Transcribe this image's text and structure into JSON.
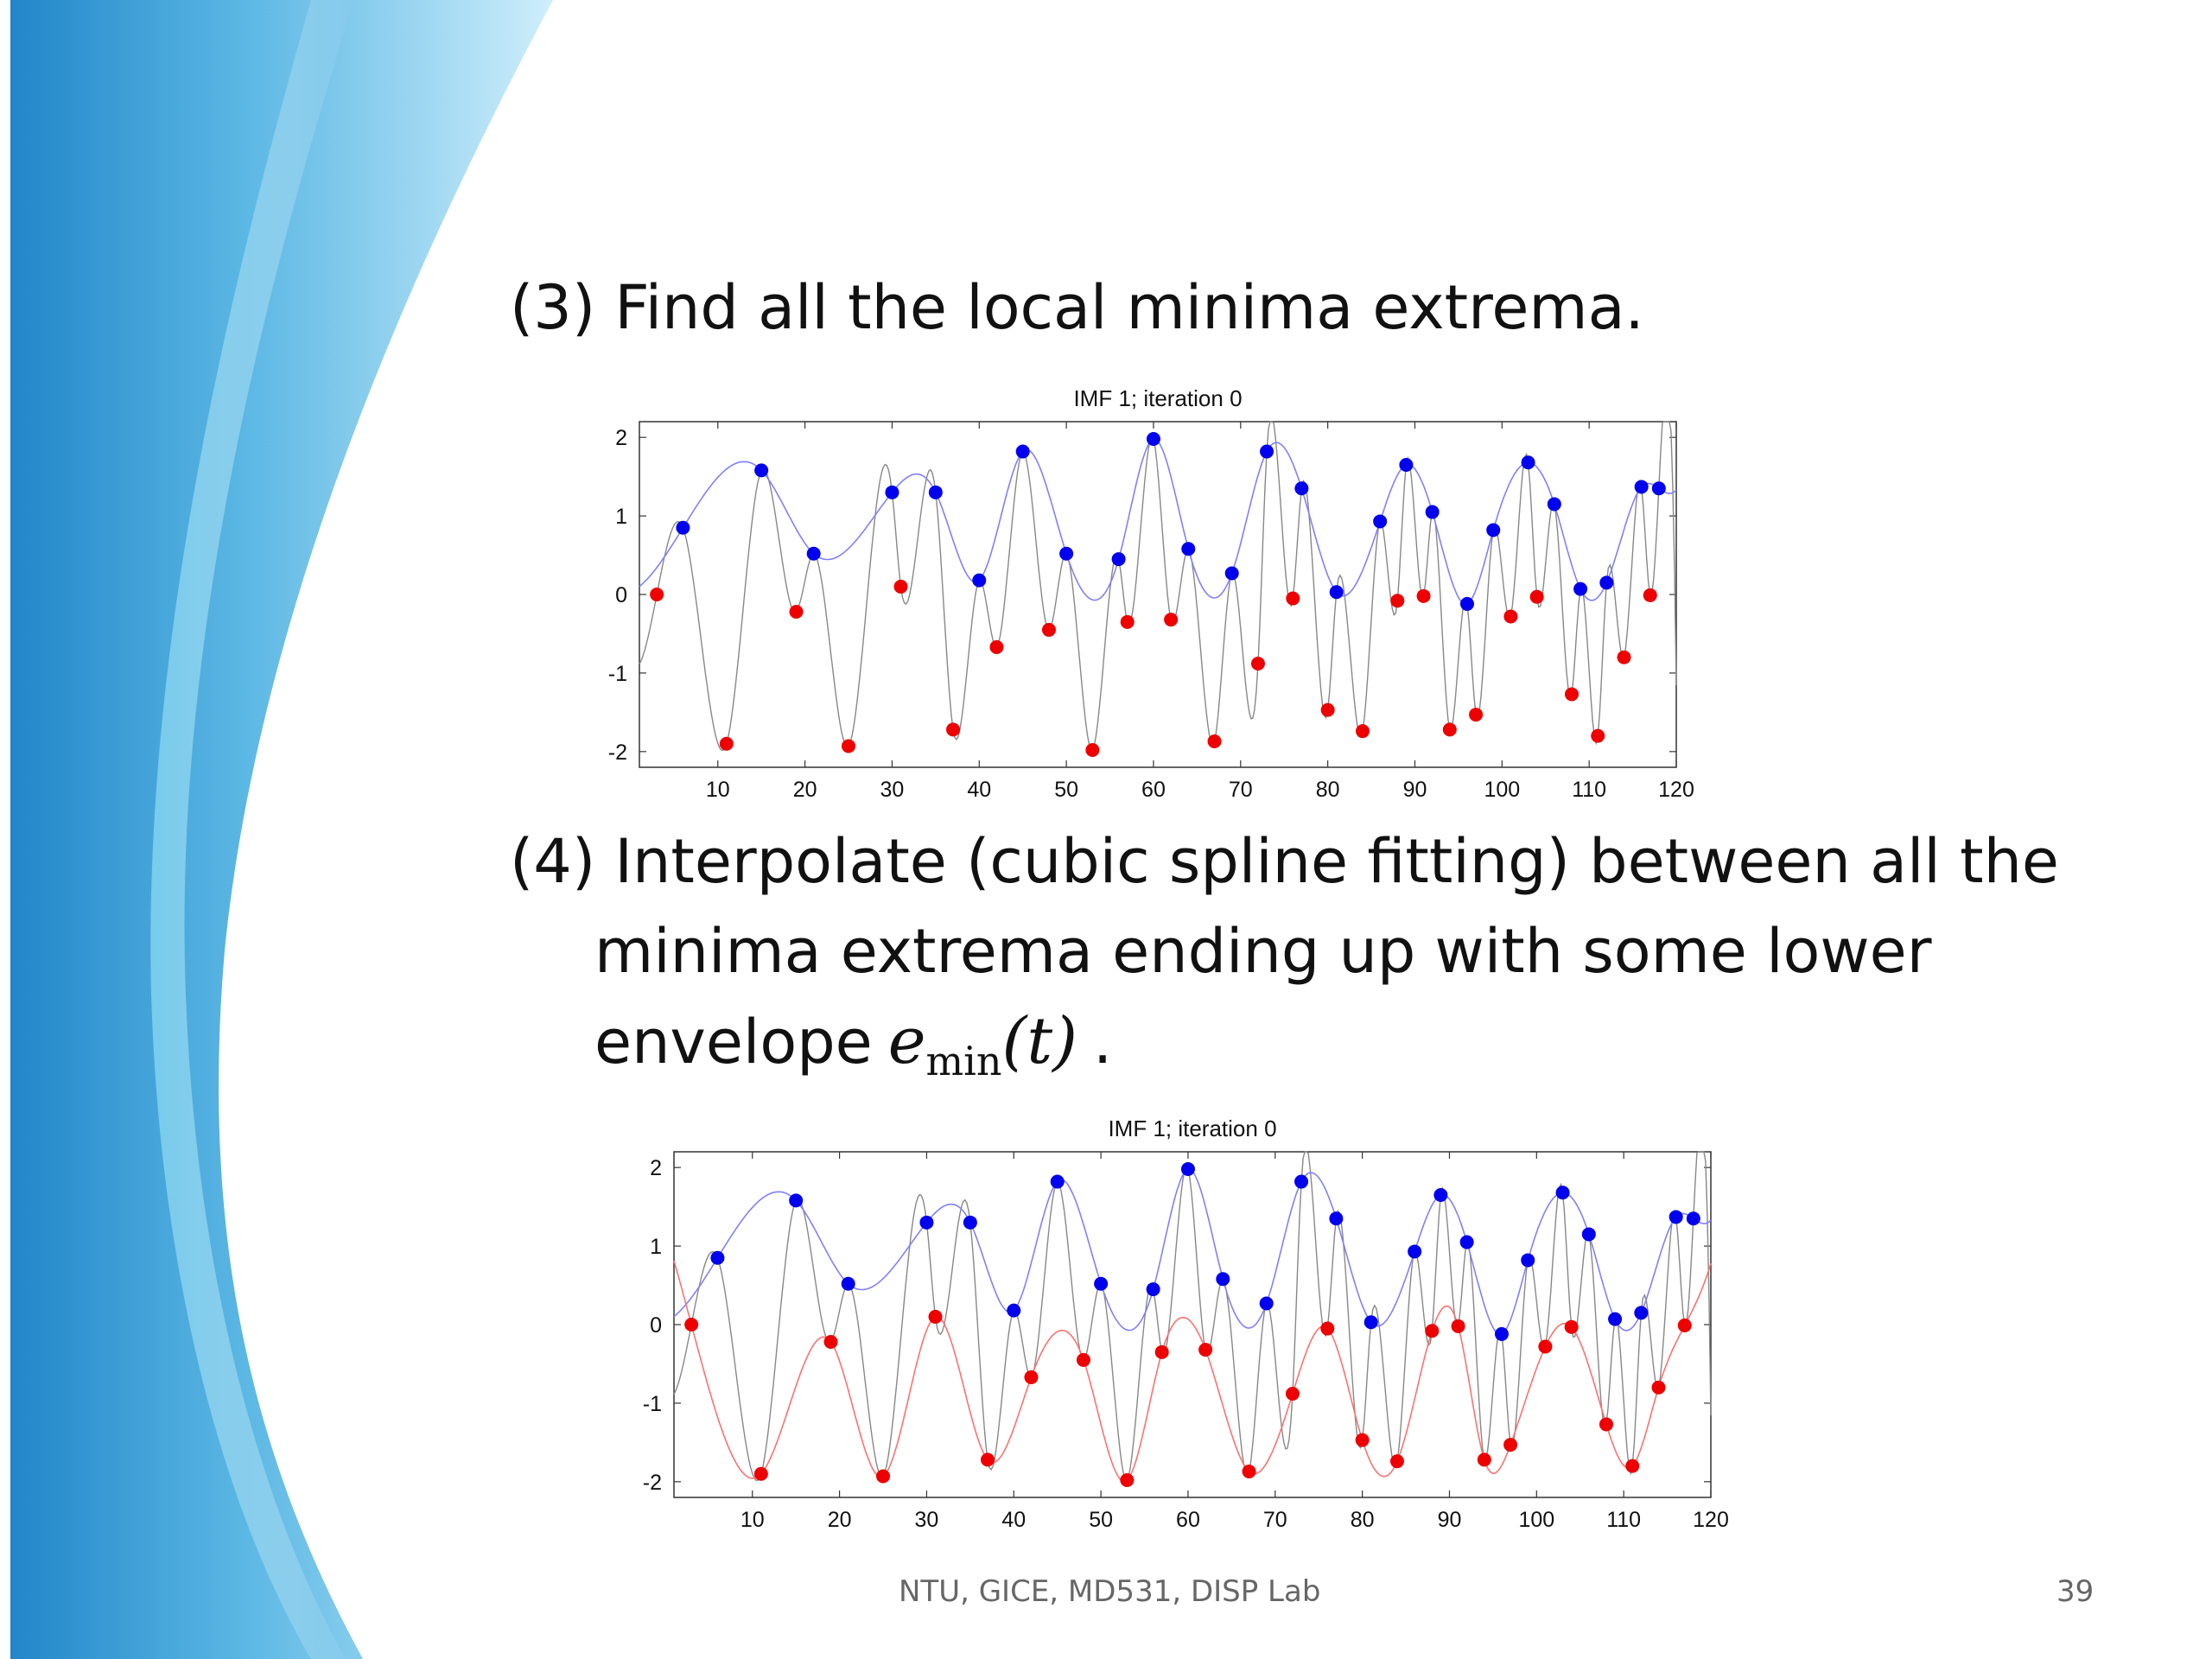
{
  "slide": {
    "heading": "(3) Find all the local minima extrema.",
    "paragraph": {
      "line1": "(4) Interpolate (cubic spline fitting) between all the",
      "line2": "minima extrema ending up with some lower",
      "line3_prefix": "envelope",
      "math_var": "e",
      "math_sub": "min",
      "math_arg": "(t)",
      "line3_suffix": "."
    },
    "footer": "NTU, GICE, MD531, DISP Lab",
    "slide_number": "39"
  },
  "colors": {
    "maxima": "#0000ee",
    "minima": "#ee0000",
    "signal": "#888888",
    "upper_envelope": "#8080ff",
    "lower_envelope": "#ff7070"
  },
  "chart_data": [
    {
      "type": "scatter",
      "title": "IMF 1;   iteration 0",
      "xlim": [
        1,
        120
      ],
      "ylim": [
        -2.2,
        2.2
      ],
      "xticks": [
        10,
        20,
        30,
        40,
        50,
        60,
        70,
        80,
        90,
        100,
        110,
        120
      ],
      "yticks": [
        2,
        1,
        0,
        -1,
        -2
      ],
      "show_lower_envelope": false,
      "series": [
        {
          "role": "maxima",
          "x": [
            6,
            15,
            21,
            30,
            35,
            40,
            45,
            50,
            56,
            60,
            64,
            69,
            73,
            77,
            81,
            86,
            89,
            92,
            96,
            99,
            103,
            106,
            109,
            112,
            116,
            118
          ],
          "y": [
            0.85,
            1.58,
            0.52,
            1.3,
            1.3,
            0.18,
            1.82,
            0.52,
            0.45,
            1.98,
            0.58,
            0.27,
            1.82,
            1.35,
            0.03,
            0.93,
            1.65,
            1.05,
            -0.12,
            0.82,
            1.68,
            1.15,
            0.07,
            0.15,
            1.37,
            1.35
          ]
        },
        {
          "role": "minima",
          "x": [
            3,
            11,
            19,
            25,
            31,
            37,
            42,
            48,
            53,
            57,
            62,
            67,
            72,
            76,
            80,
            84,
            88,
            91,
            94,
            97,
            101,
            104,
            108,
            111,
            114,
            117
          ],
          "y": [
            0.0,
            -1.9,
            -0.22,
            -1.93,
            0.1,
            -1.72,
            -0.67,
            -0.45,
            -1.98,
            -0.35,
            -0.32,
            -1.87,
            -0.88,
            -0.05,
            -1.47,
            -1.74,
            -0.08,
            -0.02,
            -1.72,
            -1.53,
            -0.28,
            -0.03,
            -1.27,
            -1.8,
            -0.8,
            -0.01
          ]
        }
      ]
    },
    {
      "type": "scatter",
      "title": "IMF 1;   iteration 0",
      "xlim": [
        1,
        120
      ],
      "ylim": [
        -2.2,
        2.2
      ],
      "xticks": [
        10,
        20,
        30,
        40,
        50,
        60,
        70,
        80,
        90,
        100,
        110,
        120
      ],
      "yticks": [
        2,
        1,
        0,
        -1,
        -2
      ],
      "show_lower_envelope": true,
      "series": [
        {
          "role": "maxima",
          "x": [
            6,
            15,
            21,
            30,
            35,
            40,
            45,
            50,
            56,
            60,
            64,
            69,
            73,
            77,
            81,
            86,
            89,
            92,
            96,
            99,
            103,
            106,
            109,
            112,
            116,
            118
          ],
          "y": [
            0.85,
            1.58,
            0.52,
            1.3,
            1.3,
            0.18,
            1.82,
            0.52,
            0.45,
            1.98,
            0.58,
            0.27,
            1.82,
            1.35,
            0.03,
            0.93,
            1.65,
            1.05,
            -0.12,
            0.82,
            1.68,
            1.15,
            0.07,
            0.15,
            1.37,
            1.35
          ]
        },
        {
          "role": "minima",
          "x": [
            3,
            11,
            19,
            25,
            31,
            37,
            42,
            48,
            53,
            57,
            62,
            67,
            72,
            76,
            80,
            84,
            88,
            91,
            94,
            97,
            101,
            104,
            108,
            111,
            114,
            117
          ],
          "y": [
            0.0,
            -1.9,
            -0.22,
            -1.93,
            0.1,
            -1.72,
            -0.67,
            -0.45,
            -1.98,
            -0.35,
            -0.32,
            -1.87,
            -0.88,
            -0.05,
            -1.47,
            -1.74,
            -0.08,
            -0.02,
            -1.72,
            -1.53,
            -0.28,
            -0.03,
            -1.27,
            -1.8,
            -0.8,
            -0.01
          ]
        }
      ]
    }
  ]
}
